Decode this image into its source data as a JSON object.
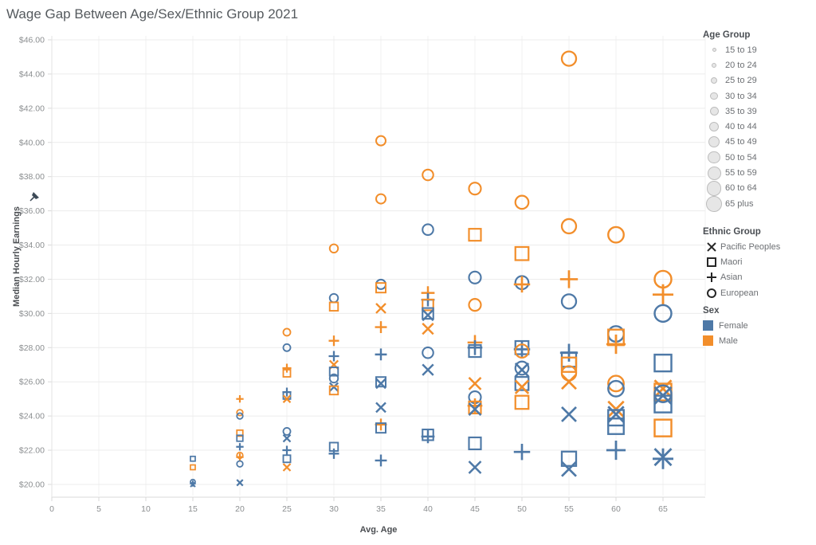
{
  "title": "Wage Gap Between Age/Sex/Ethnic Group 2021",
  "chart_data": {
    "type": "scatter",
    "title": "Wage Gap Between Age/Sex/Ethnic Group 2021",
    "xlabel": "Avg. Age",
    "ylabel": "Median Hourly Earnings",
    "x_ticks": [
      0,
      5,
      10,
      15,
      20,
      25,
      30,
      35,
      40,
      45,
      50,
      55,
      60,
      65
    ],
    "y_ticks": [
      {
        "v": 46,
        "label": "$46.00"
      },
      {
        "v": 44,
        "label": "$44.00"
      },
      {
        "v": 42,
        "label": "$42.00"
      },
      {
        "v": 40,
        "label": "$40.00"
      },
      {
        "v": 38,
        "label": "$38.00"
      },
      {
        "v": 36,
        "label": "$36.00"
      },
      {
        "v": 34,
        "label": "$34.00"
      },
      {
        "v": 32,
        "label": "$32.00"
      },
      {
        "v": 30,
        "label": "$30.00"
      },
      {
        "v": 28,
        "label": "$28.00"
      },
      {
        "v": 26,
        "label": "$26.00"
      },
      {
        "v": 24,
        "label": "$24.00"
      },
      {
        "v": 22,
        "label": "$22.00"
      },
      {
        "v": 20,
        "label": "$20.00"
      }
    ],
    "x_range": [
      0,
      69.5
    ],
    "y_range": [
      19.3,
      46.3
    ],
    "grid": true,
    "sex_colors": {
      "F": "#4e79a7",
      "M": "#f28e2b"
    },
    "shape_by_ethnic": {
      "Pacific Peoples": "x",
      "Maori": "square",
      "Asian": "plus",
      "European": "circle"
    },
    "columns": [
      {
        "age": 15,
        "size": 6,
        "marks": [
          {
            "shape": "square",
            "sex": "F",
            "v": 21.5
          },
          {
            "shape": "square",
            "sex": "M",
            "v": 21.0
          },
          {
            "shape": "circle",
            "sex": "F",
            "v": 20.15
          },
          {
            "shape": "plus",
            "sex": "F",
            "v": 20.05
          },
          {
            "shape": "x",
            "sex": "F",
            "v": 20.0
          }
        ]
      },
      {
        "age": 20,
        "size": 7.5,
        "marks": [
          {
            "shape": "plus",
            "sex": "M",
            "v": 25.0
          },
          {
            "shape": "circle",
            "sex": "M",
            "v": 24.2
          },
          {
            "shape": "circle",
            "sex": "F",
            "v": 24.0
          },
          {
            "shape": "square",
            "sex": "M",
            "v": 23.0
          },
          {
            "shape": "square",
            "sex": "F",
            "v": 22.7
          },
          {
            "shape": "plus",
            "sex": "F",
            "v": 22.2
          },
          {
            "shape": "circle",
            "sex": "M",
            "v": 21.7
          },
          {
            "shape": "plus",
            "sex": "M",
            "v": 21.6
          },
          {
            "shape": "circle",
            "sex": "F",
            "v": 21.2
          },
          {
            "shape": "x",
            "sex": "F",
            "v": 20.1
          }
        ]
      },
      {
        "age": 25,
        "size": 9,
        "marks": [
          {
            "shape": "circle",
            "sex": "M",
            "v": 28.9
          },
          {
            "shape": "circle",
            "sex": "F",
            "v": 28.0
          },
          {
            "shape": "plus",
            "sex": "M",
            "v": 26.8
          },
          {
            "shape": "square",
            "sex": "M",
            "v": 26.5
          },
          {
            "shape": "plus",
            "sex": "F",
            "v": 25.4
          },
          {
            "shape": "square",
            "sex": "F",
            "v": 25.2
          },
          {
            "shape": "x",
            "sex": "M",
            "v": 25.0
          },
          {
            "shape": "circle",
            "sex": "F",
            "v": 23.1
          },
          {
            "shape": "x",
            "sex": "F",
            "v": 22.7
          },
          {
            "shape": "plus",
            "sex": "F",
            "v": 22.0
          },
          {
            "shape": "square",
            "sex": "F",
            "v": 21.5
          },
          {
            "shape": "x",
            "sex": "M",
            "v": 21.0
          }
        ]
      },
      {
        "age": 30,
        "size": 10.5,
        "marks": [
          {
            "shape": "circle",
            "sex": "M",
            "v": 33.8
          },
          {
            "shape": "circle",
            "sex": "F",
            "v": 30.9
          },
          {
            "shape": "square",
            "sex": "M",
            "v": 30.4
          },
          {
            "shape": "plus",
            "sex": "M",
            "v": 28.4
          },
          {
            "shape": "plus",
            "sex": "F",
            "v": 27.5
          },
          {
            "shape": "x",
            "sex": "M",
            "v": 27.0
          },
          {
            "shape": "square",
            "sex": "F",
            "v": 26.6
          },
          {
            "shape": "circle",
            "sex": "F",
            "v": 26.2
          },
          {
            "shape": "x",
            "sex": "F",
            "v": 25.7
          },
          {
            "shape": "square",
            "sex": "M",
            "v": 25.5
          },
          {
            "shape": "square",
            "sex": "F",
            "v": 22.2
          },
          {
            "shape": "plus",
            "sex": "F",
            "v": 21.8
          }
        ]
      },
      {
        "age": 35,
        "size": 12,
        "marks": [
          {
            "shape": "circle",
            "sex": "M",
            "v": 40.1
          },
          {
            "shape": "circle",
            "sex": "M",
            "v": 36.7
          },
          {
            "shape": "circle",
            "sex": "F",
            "v": 31.7
          },
          {
            "shape": "square",
            "sex": "M",
            "v": 31.5
          },
          {
            "shape": "x",
            "sex": "M",
            "v": 30.3
          },
          {
            "shape": "plus",
            "sex": "M",
            "v": 29.2
          },
          {
            "shape": "plus",
            "sex": "F",
            "v": 27.6
          },
          {
            "shape": "square",
            "sex": "F",
            "v": 26.0
          },
          {
            "shape": "x",
            "sex": "F",
            "v": 25.9
          },
          {
            "shape": "x",
            "sex": "F",
            "v": 24.5
          },
          {
            "shape": "plus",
            "sex": "M",
            "v": 23.5
          },
          {
            "shape": "square",
            "sex": "F",
            "v": 23.3
          },
          {
            "shape": "plus",
            "sex": "F",
            "v": 21.4
          }
        ]
      },
      {
        "age": 40,
        "size": 13.5,
        "marks": [
          {
            "shape": "circle",
            "sex": "M",
            "v": 38.1
          },
          {
            "shape": "circle",
            "sex": "F",
            "v": 34.9
          },
          {
            "shape": "plus",
            "sex": "M",
            "v": 31.2
          },
          {
            "shape": "plus",
            "sex": "F",
            "v": 30.8
          },
          {
            "shape": "square",
            "sex": "M",
            "v": 30.5
          },
          {
            "shape": "square",
            "sex": "F",
            "v": 30.0
          },
          {
            "shape": "x",
            "sex": "F",
            "v": 29.9
          },
          {
            "shape": "x",
            "sex": "M",
            "v": 29.1
          },
          {
            "shape": "circle",
            "sex": "F",
            "v": 27.7
          },
          {
            "shape": "x",
            "sex": "F",
            "v": 26.7
          },
          {
            "shape": "square",
            "sex": "F",
            "v": 22.9
          },
          {
            "shape": "plus",
            "sex": "F",
            "v": 22.8
          }
        ]
      },
      {
        "age": 45,
        "size": 15,
        "marks": [
          {
            "shape": "circle",
            "sex": "M",
            "v": 37.3
          },
          {
            "shape": "square",
            "sex": "M",
            "v": 34.6
          },
          {
            "shape": "circle",
            "sex": "F",
            "v": 32.1
          },
          {
            "shape": "circle",
            "sex": "M",
            "v": 30.5
          },
          {
            "shape": "plus",
            "sex": "M",
            "v": 28.3
          },
          {
            "shape": "plus",
            "sex": "F",
            "v": 28.0
          },
          {
            "shape": "square",
            "sex": "F",
            "v": 27.8
          },
          {
            "shape": "x",
            "sex": "M",
            "v": 25.9
          },
          {
            "shape": "circle",
            "sex": "F",
            "v": 25.1
          },
          {
            "shape": "plus",
            "sex": "M",
            "v": 24.6
          },
          {
            "shape": "square",
            "sex": "M",
            "v": 24.5
          },
          {
            "shape": "x",
            "sex": "F",
            "v": 24.4
          },
          {
            "shape": "square",
            "sex": "F",
            "v": 22.4
          },
          {
            "shape": "x",
            "sex": "F",
            "v": 21.0
          }
        ]
      },
      {
        "age": 50,
        "size": 16.5,
        "marks": [
          {
            "shape": "circle",
            "sex": "M",
            "v": 36.5
          },
          {
            "shape": "square",
            "sex": "M",
            "v": 33.5
          },
          {
            "shape": "circle",
            "sex": "F",
            "v": 31.8
          },
          {
            "shape": "plus",
            "sex": "M",
            "v": 31.7
          },
          {
            "shape": "square",
            "sex": "F",
            "v": 28.0
          },
          {
            "shape": "plus",
            "sex": "F",
            "v": 27.9
          },
          {
            "shape": "circle",
            "sex": "M",
            "v": 27.8
          },
          {
            "shape": "circle",
            "sex": "F",
            "v": 26.8
          },
          {
            "shape": "x",
            "sex": "F",
            "v": 26.7
          },
          {
            "shape": "square",
            "sex": "F",
            "v": 25.9
          },
          {
            "shape": "x",
            "sex": "M",
            "v": 25.7
          },
          {
            "shape": "square",
            "sex": "M",
            "v": 24.8
          },
          {
            "shape": "plus",
            "sex": "F",
            "v": 21.9
          }
        ]
      },
      {
        "age": 55,
        "size": 18,
        "marks": [
          {
            "shape": "circle",
            "sex": "M",
            "v": 44.9
          },
          {
            "shape": "circle",
            "sex": "M",
            "v": 35.1
          },
          {
            "shape": "plus",
            "sex": "M",
            "v": 32.0
          },
          {
            "shape": "circle",
            "sex": "F",
            "v": 30.7
          },
          {
            "shape": "plus",
            "sex": "F",
            "v": 27.7
          },
          {
            "shape": "square",
            "sex": "F",
            "v": 27.3
          },
          {
            "shape": "square",
            "sex": "M",
            "v": 27.0
          },
          {
            "shape": "circle",
            "sex": "M",
            "v": 26.5
          },
          {
            "shape": "x",
            "sex": "M",
            "v": 26.0
          },
          {
            "shape": "x",
            "sex": "F",
            "v": 24.1
          },
          {
            "shape": "square",
            "sex": "F",
            "v": 21.5
          },
          {
            "shape": "x",
            "sex": "F",
            "v": 20.9
          }
        ]
      },
      {
        "age": 60,
        "size": 19.5,
        "marks": [
          {
            "shape": "circle",
            "sex": "M",
            "v": 34.6
          },
          {
            "shape": "circle",
            "sex": "F",
            "v": 28.8
          },
          {
            "shape": "square",
            "sex": "M",
            "v": 28.6
          },
          {
            "shape": "plus",
            "sex": "M",
            "v": 28.2
          },
          {
            "shape": "circle",
            "sex": "M",
            "v": 25.9
          },
          {
            "shape": "circle",
            "sex": "F",
            "v": 25.6
          },
          {
            "shape": "x",
            "sex": "M",
            "v": 24.4
          },
          {
            "shape": "x",
            "sex": "F",
            "v": 24.1
          },
          {
            "shape": "square",
            "sex": "F",
            "v": 23.9
          },
          {
            "shape": "square",
            "sex": "F",
            "v": 23.4
          },
          {
            "shape": "plus",
            "sex": "F",
            "v": 22.0
          }
        ]
      },
      {
        "age": 65,
        "size": 21,
        "marks": [
          {
            "shape": "circle",
            "sex": "M",
            "v": 32.0
          },
          {
            "shape": "plus",
            "sex": "M",
            "v": 31.1
          },
          {
            "shape": "circle",
            "sex": "F",
            "v": 30.0
          },
          {
            "shape": "square",
            "sex": "F",
            "v": 27.1
          },
          {
            "shape": "x",
            "sex": "M",
            "v": 25.6
          },
          {
            "shape": "square",
            "sex": "M",
            "v": 25.4
          },
          {
            "shape": "circle",
            "sex": "F",
            "v": 25.3
          },
          {
            "shape": "x",
            "sex": "F",
            "v": 25.2
          },
          {
            "shape": "square",
            "sex": "F",
            "v": 24.7
          },
          {
            "shape": "square",
            "sex": "M",
            "v": 23.3
          },
          {
            "shape": "x",
            "sex": "F",
            "v": 21.6
          },
          {
            "shape": "plus",
            "sex": "F",
            "v": 21.5
          }
        ]
      }
    ]
  },
  "legends": {
    "age_group": {
      "title": "Age Group",
      "items": [
        {
          "label": "15 to 19",
          "d": 5
        },
        {
          "label": "20 to 24",
          "d": 6.5
        },
        {
          "label": "25 to 29",
          "d": 8
        },
        {
          "label": "30 to 34",
          "d": 9.5
        },
        {
          "label": "35 to 39",
          "d": 11
        },
        {
          "label": "40 to 44",
          "d": 12.5
        },
        {
          "label": "45 to 49",
          "d": 14
        },
        {
          "label": "50 to 54",
          "d": 15.5
        },
        {
          "label": "55 to 59",
          "d": 17
        },
        {
          "label": "60 to 64",
          "d": 18.5
        },
        {
          "label": "65 plus",
          "d": 20
        }
      ]
    },
    "ethnic_group": {
      "title": "Ethnic Group",
      "items": [
        {
          "label": "Pacific Peoples",
          "shape": "x"
        },
        {
          "label": "Maori",
          "shape": "square"
        },
        {
          "label": "Asian",
          "shape": "plus"
        },
        {
          "label": "European",
          "shape": "circle"
        }
      ]
    },
    "sex": {
      "title": "Sex",
      "items": [
        {
          "label": "Female",
          "color": "#4e79a7"
        },
        {
          "label": "Male",
          "color": "#f28e2b"
        }
      ]
    }
  }
}
